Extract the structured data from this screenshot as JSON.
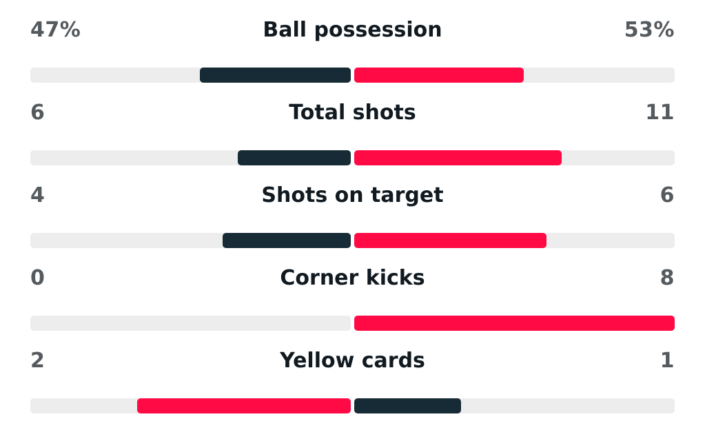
{
  "colors": {
    "home": "#162b35",
    "away": "#ff0a45",
    "track": "#ededed"
  },
  "stats": [
    {
      "label": "Ball possession",
      "home_text": "47%",
      "away_text": "53%",
      "home_fraction": 0.47,
      "away_fraction": 0.53,
      "home_color": "#162b35",
      "away_color": "#ff0a45"
    },
    {
      "label": "Total shots",
      "home_text": "6",
      "away_text": "11",
      "home_fraction": 0.353,
      "away_fraction": 0.647,
      "home_color": "#162b35",
      "away_color": "#ff0a45"
    },
    {
      "label": "Shots on target",
      "home_text": "4",
      "away_text": "6",
      "home_fraction": 0.4,
      "away_fraction": 0.6,
      "home_color": "#162b35",
      "away_color": "#ff0a45"
    },
    {
      "label": "Corner kicks",
      "home_text": "0",
      "away_text": "8",
      "home_fraction": 0.0,
      "away_fraction": 1.0,
      "home_color": "#162b35",
      "away_color": "#ff0a45"
    },
    {
      "label": "Yellow cards",
      "home_text": "2",
      "away_text": "1",
      "home_fraction": 0.667,
      "away_fraction": 0.333,
      "home_color": "#ff0a45",
      "away_color": "#162b35"
    }
  ]
}
